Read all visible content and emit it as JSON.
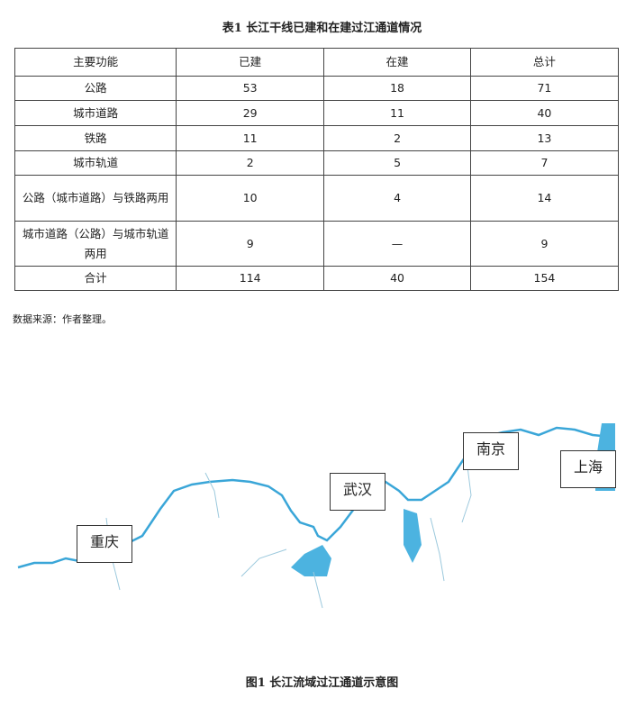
{
  "table_title": "表1  长江干线已建和在建过江通道情况",
  "table": {
    "headers": [
      "主要功能",
      "已建",
      "在建",
      "总计"
    ],
    "rows": [
      [
        "公路",
        "53",
        "18",
        "71"
      ],
      [
        "城市道路",
        "29",
        "11",
        "40"
      ],
      [
        "铁路",
        "11",
        "2",
        "13"
      ],
      [
        "城市轨道",
        "2",
        "5",
        "7"
      ],
      [
        "公路（城市道路）与铁路两用",
        "10",
        "4",
        "14"
      ],
      [
        "城市道路（公路）与城市轨道两用",
        "9",
        "—",
        "9"
      ],
      [
        "合计",
        "114",
        "40",
        "154"
      ]
    ]
  },
  "source_note": "数据来源：作者整理。",
  "map": {
    "cities": [
      "重庆",
      "武汉",
      "南京",
      "上海"
    ],
    "river_color": "#3aa6d8"
  },
  "figure_caption": "图1  长江流域过江通道示意图"
}
